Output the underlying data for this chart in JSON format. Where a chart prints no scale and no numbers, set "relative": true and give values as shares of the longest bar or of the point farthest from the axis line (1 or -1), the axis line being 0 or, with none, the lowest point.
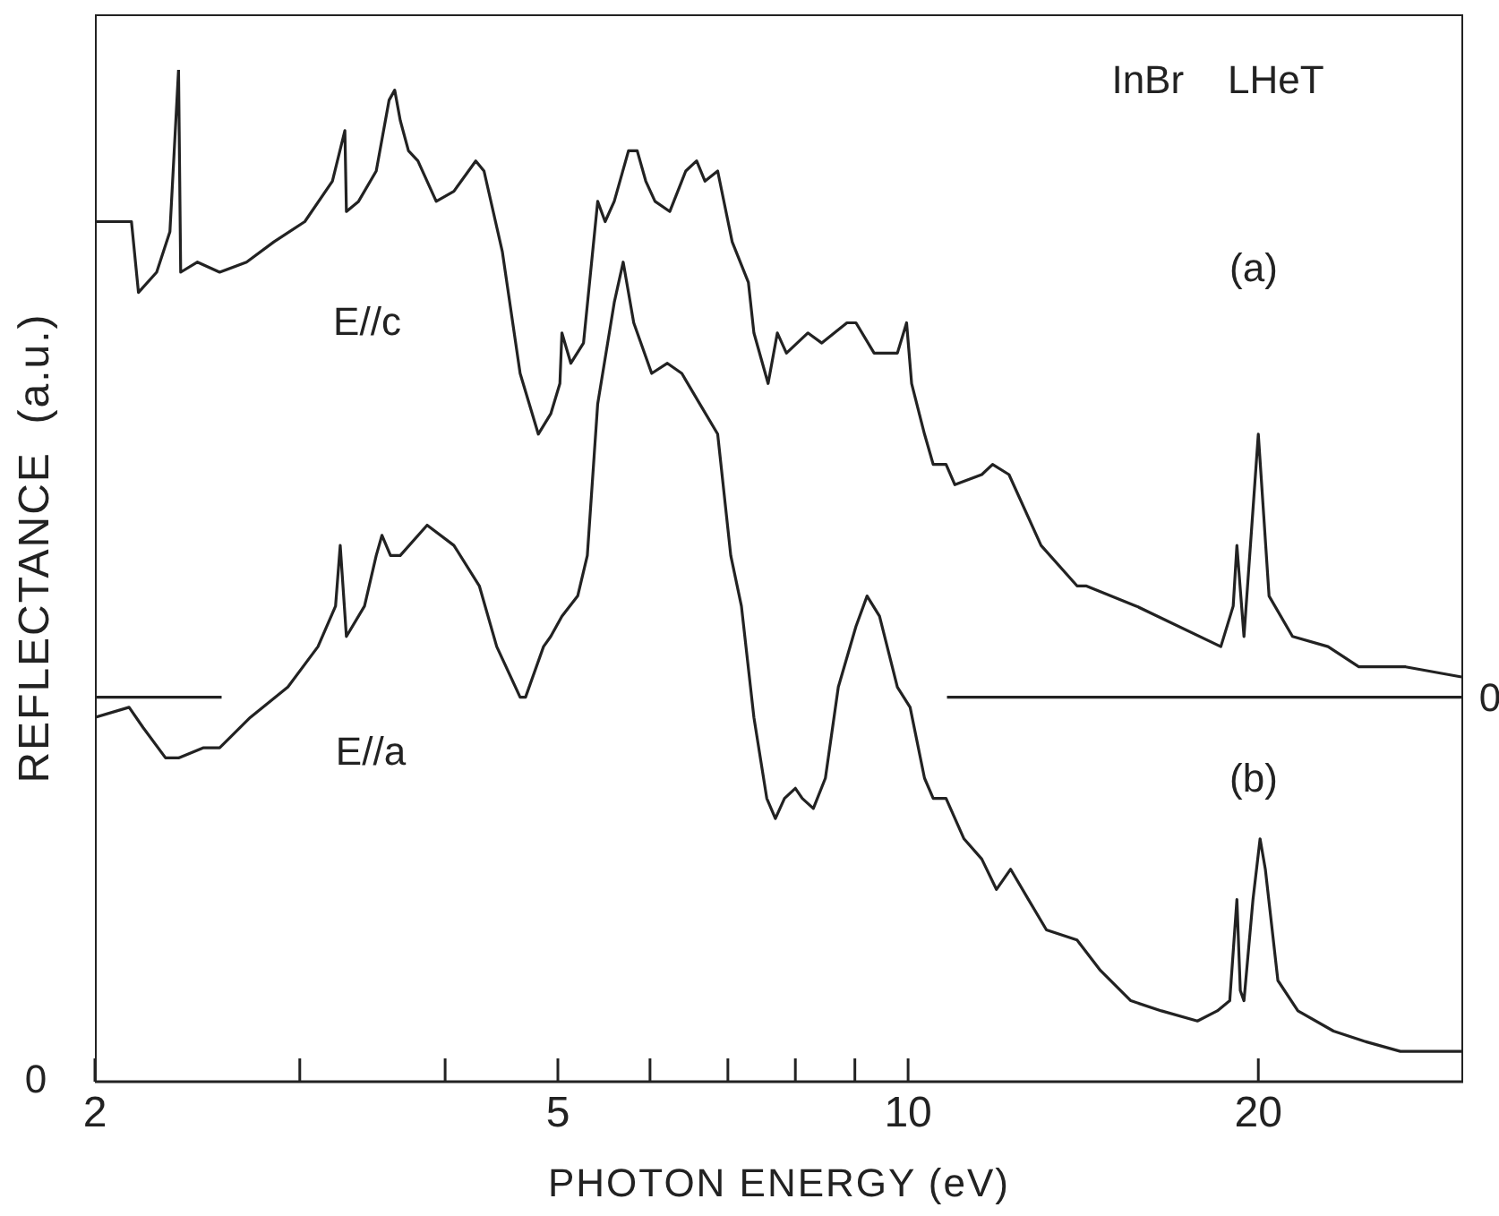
{
  "chart_data": {
    "type": "line",
    "relative": true,
    "log": "x",
    "xlabel": "PHOTON  ENERGY   (eV)",
    "ylabel": "REFLECTANCE  (a.u.)",
    "xlim": [
      2,
      30
    ],
    "xticks": [
      {
        "value": 2,
        "label": "2"
      },
      {
        "value": 3,
        "label": null
      },
      {
        "value": 4,
        "label": null
      },
      {
        "value": 5,
        "label": "5"
      },
      {
        "value": 6,
        "label": null
      },
      {
        "value": 7,
        "label": null
      },
      {
        "value": 8,
        "label": null
      },
      {
        "value": 9,
        "label": null
      },
      {
        "value": 10,
        "label": "10"
      },
      {
        "value": 20,
        "label": "20"
      }
    ],
    "marker": "none",
    "line_style": "solid",
    "series": [
      {
        "color": "#222222",
        "x": [
          2.0,
          2.07,
          2.15,
          2.18,
          2.26,
          2.32,
          2.36,
          2.37,
          2.45,
          2.56,
          2.7,
          2.85,
          3.03,
          3.2,
          3.28,
          3.29,
          3.37,
          3.49,
          3.58,
          3.62,
          3.66,
          3.72,
          3.79,
          3.93,
          4.07,
          4.25,
          4.32,
          4.48,
          4.64,
          4.81,
          4.93,
          5.02,
          5.04,
          5.13,
          5.26,
          5.41,
          5.49,
          5.59,
          5.75,
          5.85,
          5.95,
          6.06,
          6.24,
          6.44,
          6.58,
          6.69,
          6.86,
          7.06,
          7.29,
          7.37,
          7.58,
          7.72,
          7.86,
          8.2,
          8.43,
          8.86,
          9.02,
          9.35,
          9.79,
          9.97,
          10.07,
          10.33,
          10.51,
          10.78,
          10.97,
          11.57,
          11.82,
          12.21,
          13.01,
          13.97,
          14.22,
          15.71,
          18.57,
          19.03,
          19.17,
          19.44,
          20.0,
          20.43,
          21.4,
          22.96,
          24.4,
          26.77,
          29.9
        ],
        "values": [
          0.85,
          0.85,
          0.85,
          0.78,
          0.8,
          0.84,
          1.0,
          0.8,
          0.81,
          0.8,
          0.81,
          0.83,
          0.85,
          0.89,
          0.94,
          0.86,
          0.87,
          0.9,
          0.97,
          0.98,
          0.95,
          0.92,
          0.91,
          0.87,
          0.88,
          0.91,
          0.9,
          0.82,
          0.7,
          0.64,
          0.66,
          0.69,
          0.74,
          0.71,
          0.73,
          0.87,
          0.85,
          0.87,
          0.92,
          0.92,
          0.89,
          0.87,
          0.86,
          0.9,
          0.91,
          0.89,
          0.9,
          0.83,
          0.79,
          0.74,
          0.69,
          0.74,
          0.72,
          0.74,
          0.73,
          0.75,
          0.75,
          0.72,
          0.72,
          0.75,
          0.69,
          0.64,
          0.61,
          0.61,
          0.59,
          0.6,
          0.61,
          0.6,
          0.53,
          0.49,
          0.49,
          0.47,
          0.43,
          0.47,
          0.53,
          0.44,
          0.64,
          0.48,
          0.44,
          0.43,
          0.41,
          0.41,
          0.4
        ]
      },
      {
        "color": "#222222",
        "x": [
          2.0,
          2.14,
          2.2,
          2.3,
          2.36,
          2.48,
          2.56,
          2.72,
          2.93,
          3.11,
          3.22,
          3.25,
          3.29,
          3.41,
          3.49,
          3.53,
          3.59,
          3.66,
          3.86,
          4.07,
          4.28,
          4.43,
          4.64,
          4.69,
          4.86,
          4.93,
          5.04,
          5.2,
          5.3,
          5.41,
          5.59,
          5.69,
          5.81,
          6.02,
          6.21,
          6.39,
          6.62,
          6.86,
          7.04,
          7.19,
          7.37,
          7.56,
          7.69,
          7.83,
          8.0,
          8.11,
          8.29,
          8.49,
          8.71,
          9.02,
          9.22,
          9.45,
          9.79,
          10.04,
          10.33,
          10.51,
          10.78,
          11.17,
          11.57,
          11.91,
          12.25,
          12.69,
          13.15,
          13.97,
          14.63,
          15.54,
          16.51,
          17.73,
          18.44,
          18.9,
          19.17,
          19.3,
          19.44,
          19.79,
          20.07,
          20.28,
          20.79,
          21.63,
          23.21,
          24.66,
          26.49,
          29.9
        ],
        "values": [
          0.36,
          0.37,
          0.35,
          0.32,
          0.32,
          0.33,
          0.33,
          0.36,
          0.39,
          0.43,
          0.47,
          0.53,
          0.44,
          0.47,
          0.52,
          0.54,
          0.52,
          0.52,
          0.55,
          0.53,
          0.49,
          0.43,
          0.38,
          0.38,
          0.43,
          0.44,
          0.46,
          0.48,
          0.52,
          0.67,
          0.77,
          0.81,
          0.75,
          0.7,
          0.71,
          0.7,
          0.67,
          0.64,
          0.52,
          0.47,
          0.36,
          0.28,
          0.26,
          0.28,
          0.29,
          0.28,
          0.27,
          0.3,
          0.39,
          0.45,
          0.48,
          0.46,
          0.39,
          0.37,
          0.3,
          0.28,
          0.28,
          0.24,
          0.22,
          0.19,
          0.21,
          0.18,
          0.15,
          0.14,
          0.11,
          0.08,
          0.07,
          0.06,
          0.07,
          0.08,
          0.18,
          0.09,
          0.08,
          0.18,
          0.24,
          0.21,
          0.1,
          0.07,
          0.05,
          0.04,
          0.03,
          0.03
        ]
      },
      {
        "color": "#222222",
        "x": [
          2.0,
          2.57
        ],
        "values": [
          0.38,
          0.38
        ]
      },
      {
        "color": "#222222",
        "x": [
          10.8,
          30
        ],
        "values": [
          0.38,
          0.38
        ]
      }
    ],
    "annotations": [
      "InBr    LHeT",
      "(a)",
      "(b)",
      "E//c",
      "E//a",
      "0",
      "0"
    ]
  }
}
